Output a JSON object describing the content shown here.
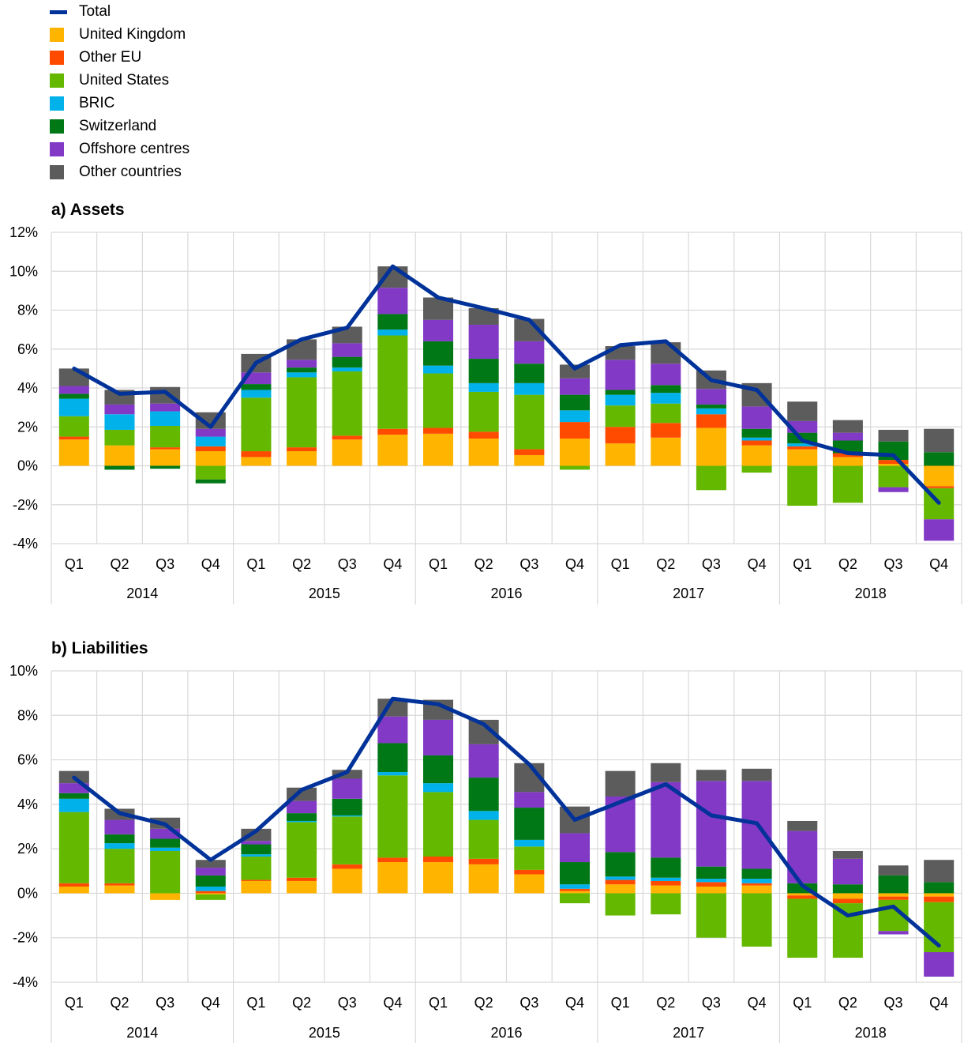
{
  "colors": {
    "total": "#003299",
    "United Kingdom": "#FFB400",
    "Other EU": "#FF4B00",
    "United States": "#65B800",
    "BRIC": "#00B1EA",
    "Switzerland": "#007816",
    "Offshore centres": "#8139C6",
    "Other countries": "#5C5C5C"
  },
  "legend": [
    {
      "label": "Total",
      "key": "total",
      "kind": "line"
    },
    {
      "label": "United Kingdom",
      "key": "United Kingdom",
      "kind": "box"
    },
    {
      "label": "Other EU",
      "key": "Other EU",
      "kind": "box"
    },
    {
      "label": "United States",
      "key": "United States",
      "kind": "box"
    },
    {
      "label": "BRIC",
      "key": "BRIC",
      "kind": "box"
    },
    {
      "label": "Switzerland",
      "key": "Switzerland",
      "kind": "box"
    },
    {
      "label": "Offshore centres",
      "key": "Offshore centres",
      "kind": "box"
    },
    {
      "label": "Other countries",
      "key": "Other countries",
      "kind": "box"
    }
  ],
  "chart_data": [
    {
      "type": "bar",
      "stacked": true,
      "title": "a) Assets",
      "quarters": [
        "Q1",
        "Q2",
        "Q3",
        "Q4"
      ],
      "years": [
        "2014",
        "2015",
        "2016",
        "2017",
        "2018"
      ],
      "ylim": [
        -4,
        12
      ],
      "yticks": [
        -4,
        -2,
        0,
        2,
        4,
        6,
        8,
        10,
        12
      ],
      "y_tick_labels": [
        "-4%",
        "-2%",
        "0%",
        "2%",
        "4%",
        "6%",
        "8%",
        "10%",
        "12%"
      ],
      "grid": true,
      "series": [
        {
          "name": "United Kingdom",
          "values": [
            1.35,
            1.05,
            0.85,
            0.75,
            0.45,
            0.75,
            1.35,
            1.6,
            1.65,
            1.4,
            0.55,
            1.4,
            1.15,
            1.45,
            1.95,
            1.05,
            0.85,
            0.45,
            0.1,
            -1.05
          ]
        },
        {
          "name": "Other EU",
          "values": [
            0.15,
            0.0,
            0.1,
            0.25,
            0.3,
            0.2,
            0.2,
            0.3,
            0.3,
            0.35,
            0.3,
            0.85,
            0.85,
            0.75,
            0.7,
            0.25,
            0.15,
            0.2,
            0.2,
            -0.1
          ]
        },
        {
          "name": "United States",
          "values": [
            1.05,
            0.8,
            1.1,
            -0.7,
            2.75,
            3.6,
            3.3,
            4.8,
            2.8,
            2.05,
            2.8,
            -0.2,
            1.1,
            1.0,
            -1.25,
            -0.35,
            -2.05,
            -1.9,
            -1.1,
            -1.6
          ]
        },
        {
          "name": "BRIC",
          "values": [
            0.9,
            0.8,
            0.75,
            0.5,
            0.4,
            0.25,
            0.2,
            0.3,
            0.4,
            0.45,
            0.6,
            0.6,
            0.55,
            0.55,
            0.3,
            0.15,
            0.15,
            0.0,
            0.0,
            0.0
          ]
        },
        {
          "name": "Switzerland",
          "values": [
            0.25,
            -0.2,
            -0.15,
            -0.2,
            0.3,
            0.25,
            0.55,
            0.8,
            1.25,
            1.25,
            1.0,
            0.8,
            0.25,
            0.4,
            0.2,
            0.45,
            0.55,
            0.65,
            0.95,
            0.7
          ]
        },
        {
          "name": "Offshore centres",
          "values": [
            0.4,
            0.5,
            0.4,
            0.4,
            0.6,
            0.4,
            0.7,
            1.35,
            1.1,
            1.75,
            1.15,
            0.85,
            1.55,
            1.1,
            0.8,
            1.15,
            0.6,
            0.4,
            -0.25,
            -1.1
          ]
        },
        {
          "name": "Other countries",
          "values": [
            0.9,
            0.75,
            0.85,
            0.85,
            0.95,
            1.05,
            0.85,
            1.1,
            1.15,
            0.85,
            1.15,
            0.7,
            0.7,
            1.1,
            0.95,
            1.2,
            1.0,
            0.65,
            0.6,
            1.2
          ]
        }
      ],
      "total": [
        5.0,
        3.7,
        3.8,
        2.0,
        5.3,
        6.5,
        7.1,
        10.25,
        8.65,
        8.1,
        7.5,
        5.0,
        6.2,
        6.4,
        4.4,
        3.9,
        1.3,
        0.65,
        0.55,
        -1.9
      ]
    },
    {
      "type": "bar",
      "stacked": true,
      "title": "b) Liabilities",
      "quarters": [
        "Q1",
        "Q2",
        "Q3",
        "Q4"
      ],
      "years": [
        "2014",
        "2015",
        "2016",
        "2017",
        "2018"
      ],
      "ylim": [
        -4,
        10
      ],
      "yticks": [
        -4,
        -2,
        0,
        2,
        4,
        6,
        8,
        10
      ],
      "y_tick_labels": [
        "-4%",
        "-2%",
        "0%",
        "2%",
        "4%",
        "6%",
        "8%",
        "10%"
      ],
      "grid": true,
      "series": [
        {
          "name": "United Kingdom",
          "values": [
            0.3,
            0.35,
            -0.3,
            -0.05,
            0.55,
            0.55,
            1.1,
            1.4,
            1.4,
            1.3,
            0.85,
            0.1,
            0.4,
            0.35,
            0.3,
            0.35,
            -0.1,
            -0.25,
            -0.15,
            -0.15
          ]
        },
        {
          "name": "Other EU",
          "values": [
            0.15,
            0.1,
            0.0,
            0.1,
            0.05,
            0.15,
            0.2,
            0.2,
            0.25,
            0.25,
            0.2,
            0.1,
            0.2,
            0.2,
            0.2,
            0.1,
            -0.15,
            -0.2,
            -0.15,
            -0.25
          ]
        },
        {
          "name": "United States",
          "values": [
            3.2,
            1.55,
            1.9,
            -0.25,
            1.05,
            2.5,
            2.15,
            3.7,
            2.9,
            1.75,
            1.05,
            -0.45,
            -1.0,
            -0.95,
            -2.0,
            -2.4,
            -2.65,
            -2.45,
            -1.4,
            -2.25
          ]
        },
        {
          "name": "BRIC",
          "values": [
            0.6,
            0.25,
            0.15,
            0.2,
            0.1,
            0.05,
            0.05,
            0.15,
            0.4,
            0.4,
            0.3,
            0.2,
            0.15,
            0.15,
            0.15,
            0.2,
            0.0,
            0.0,
            0.0,
            0.0
          ]
        },
        {
          "name": "Switzerland",
          "values": [
            0.25,
            0.4,
            0.4,
            0.5,
            0.45,
            0.35,
            0.75,
            1.3,
            1.25,
            1.5,
            1.45,
            1.0,
            1.1,
            0.9,
            0.55,
            0.45,
            0.45,
            0.4,
            0.8,
            0.5
          ]
        },
        {
          "name": "Offshore centres",
          "values": [
            0.45,
            0.65,
            0.45,
            0.35,
            0.15,
            0.55,
            0.9,
            1.2,
            1.6,
            1.5,
            0.7,
            1.3,
            2.5,
            3.4,
            3.85,
            3.95,
            2.35,
            1.15,
            -0.15,
            -1.1
          ]
        },
        {
          "name": "Other countries",
          "values": [
            0.55,
            0.5,
            0.5,
            0.35,
            0.55,
            0.6,
            0.4,
            0.8,
            0.9,
            1.1,
            1.3,
            1.2,
            1.15,
            0.85,
            0.5,
            0.55,
            0.45,
            0.35,
            0.45,
            1.0
          ]
        }
      ],
      "total": [
        5.2,
        3.6,
        3.1,
        1.5,
        2.8,
        4.65,
        5.45,
        8.75,
        8.5,
        7.6,
        5.8,
        3.3,
        4.1,
        4.9,
        3.5,
        3.15,
        0.35,
        -1.0,
        -0.6,
        -2.35
      ]
    }
  ]
}
